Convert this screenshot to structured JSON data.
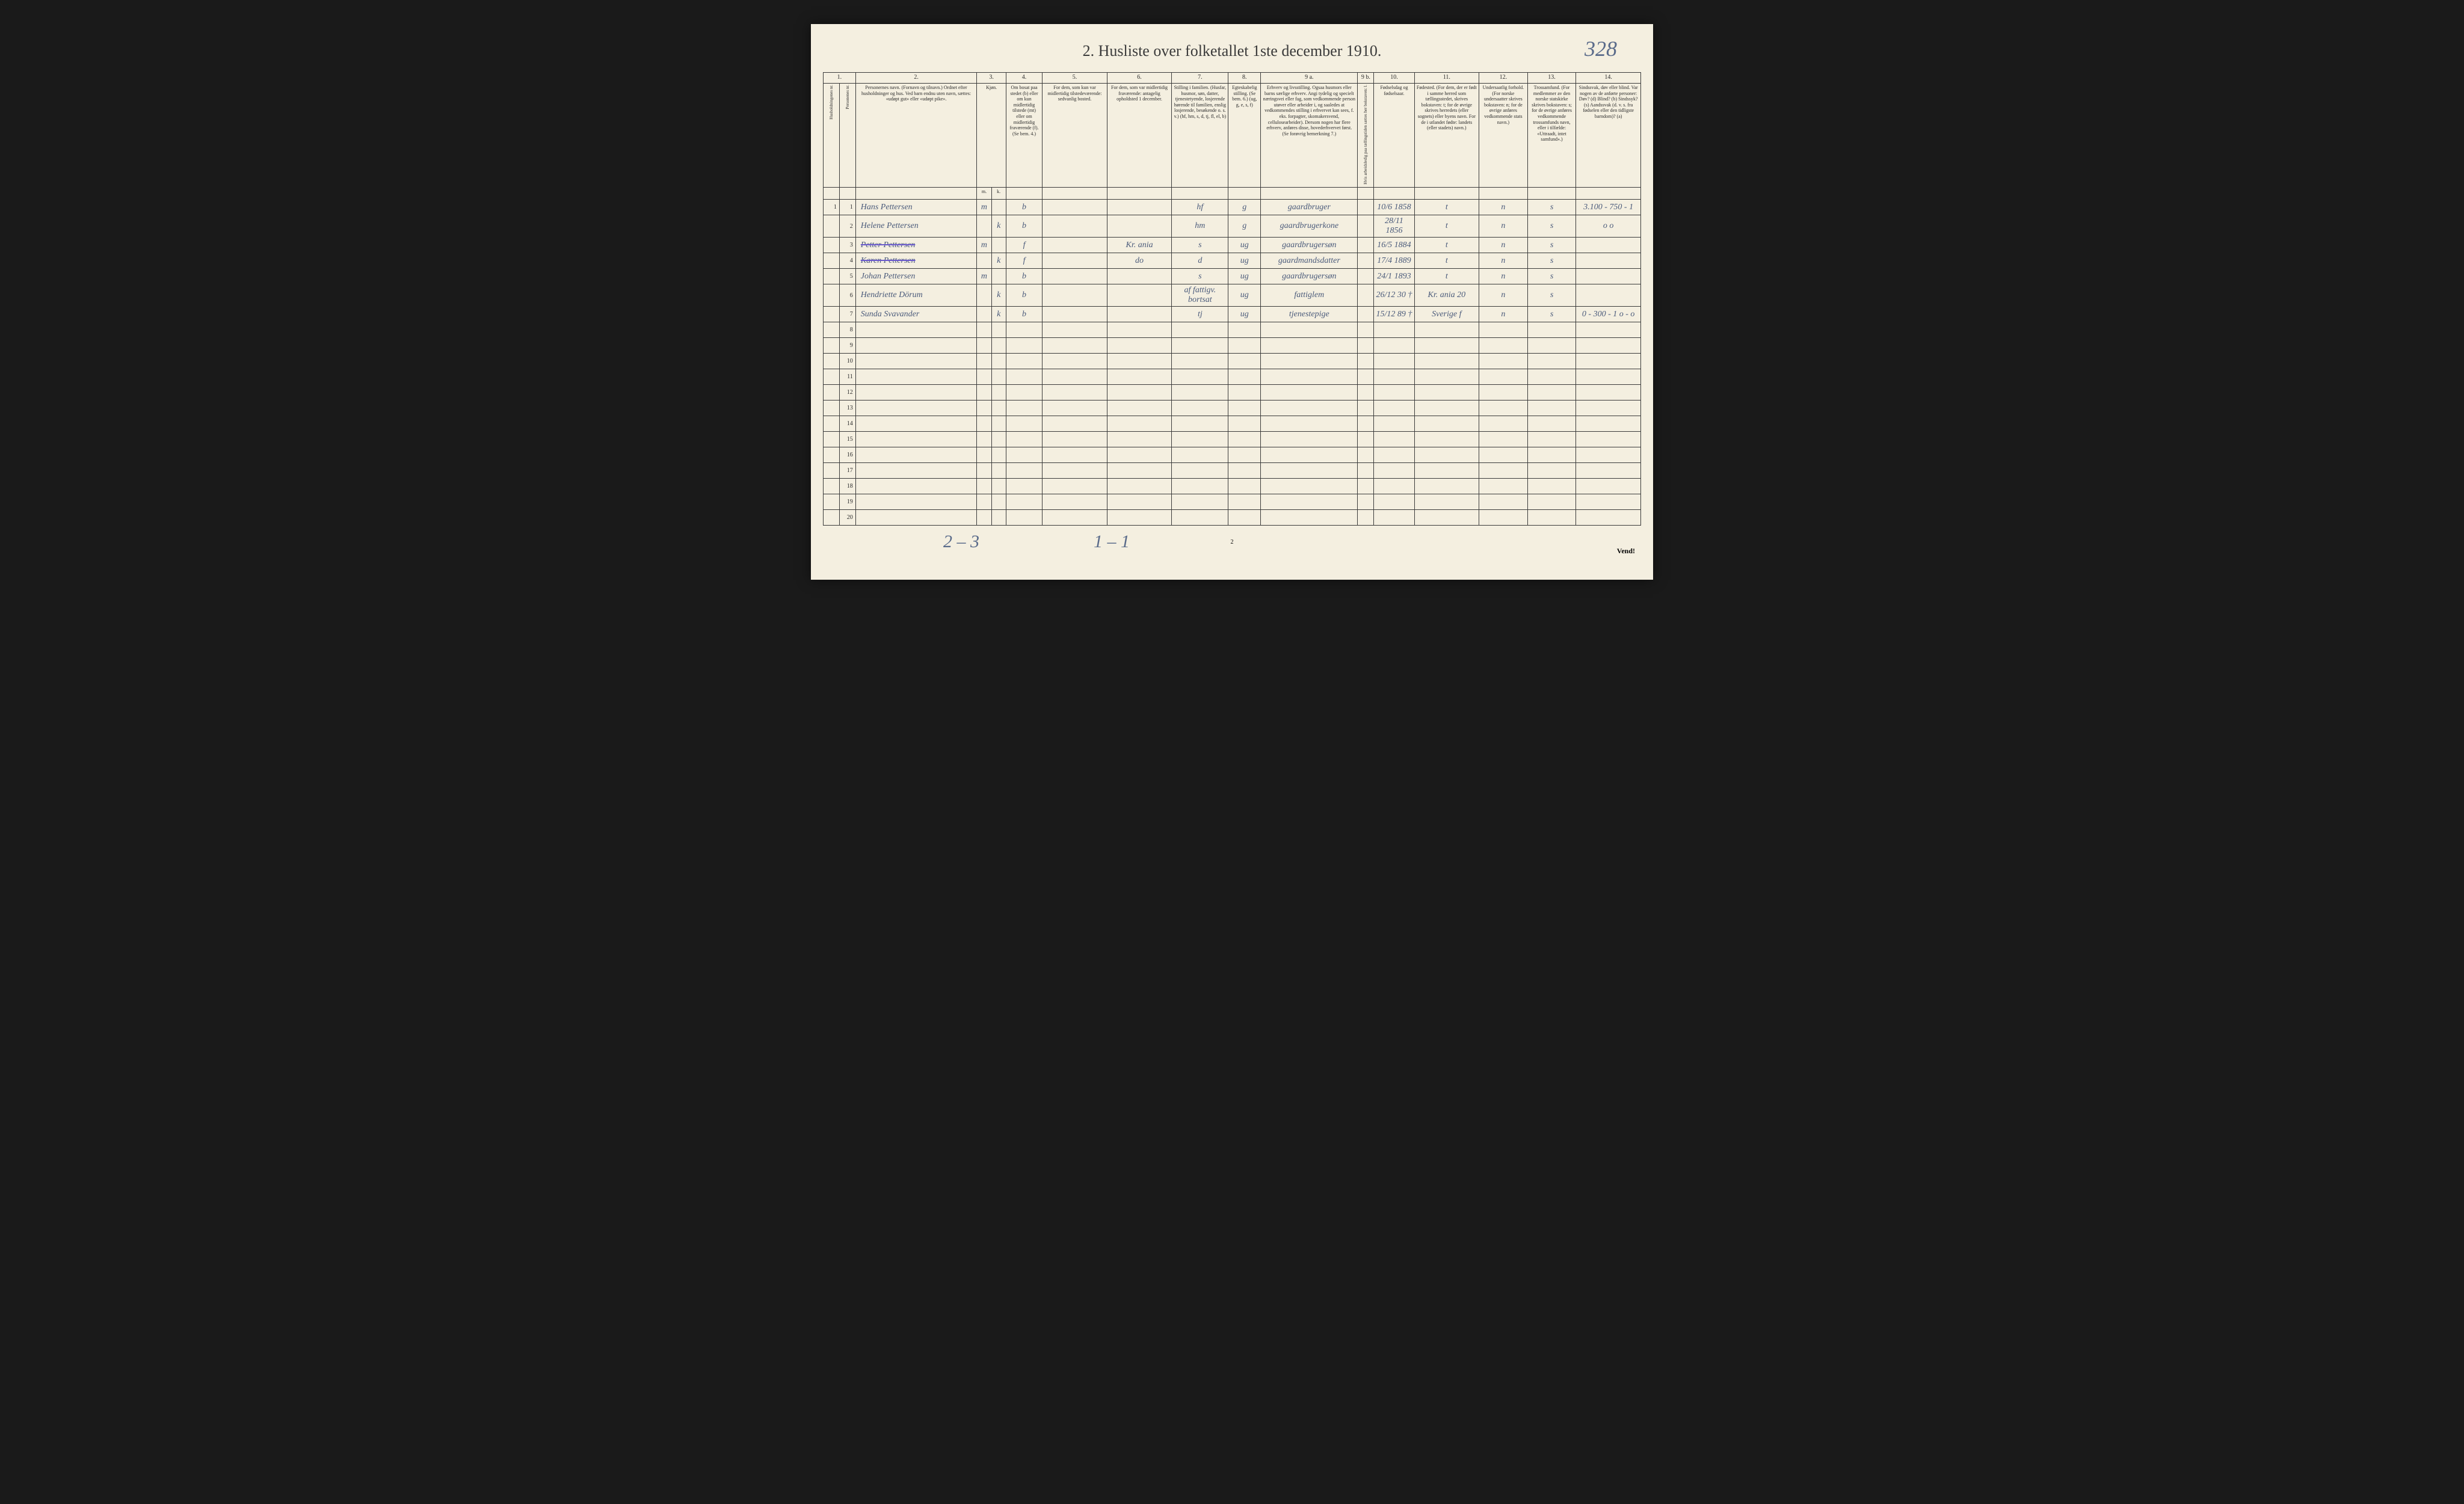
{
  "page_number_handwritten": "328",
  "title": "2.  Husliste over folketallet 1ste december 1910.",
  "column_numbers": [
    "1.",
    "",
    "2.",
    "3.",
    "4.",
    "5.",
    "6.",
    "7.",
    "8.",
    "9 a.",
    "9 b.",
    "10.",
    "11.",
    "12.",
    "13.",
    "14."
  ],
  "headers": {
    "col1a": "Husholdningenes nr.",
    "col1b": "Personenes nr.",
    "col2": "Personernes navn.\n(Fornavn og tilnavn.)\nOrdnet efter husholdninger og hus.\nVed barn endnu uten navn, sættes: «udøpt gut» eller «udøpt pike».",
    "col3": "Kjøn.",
    "col3a": "Mænd.",
    "col3b": "Kvinder.",
    "col4": "Om bosat paa stedet (b) eller om kun midlertidig tilstede (mt) eller om midlertidig fraværende (f).\n(Se bem. 4.)",
    "col5": "For dem, som kun var midlertidig tilstedeværende:\nsedvanlig bosted.",
    "col6": "For dem, som var midlertidig fraværende:\nantagelig opholdsted 1 december.",
    "col7": "Stilling i familien.\n(Husfar, husmor, søn, datter, tjenestetyende, losjerende hørende til familien, enslig losjerende, besøkende o. s. v.)\n(hf, hm, s, d, tj, fl, el, b)",
    "col8": "Egteskabelig stilling.\n(Se bem. 6.)\n(ug, g, e, s, f)",
    "col9a": "Erhverv og livsstilling.\nOgsaa husmors eller barns særlige erhverv.\nAngi tydelig og specielt næringsvei eller fag, som vedkommende person utøver eller arbeider i, og saaledes at vedkommendes stilling i erhvervet kan sees, f. eks. forpagter, skomakersvend, cellulosearbeider). Dersom nogen har flere erhverv, anføres disse, hovederhvervet først.\n(Se forøvrig bemerkning 7.)",
    "col9b": "Hvis arbeidsledig paa tællingstiden sættes her bokstaven: l.",
    "col10": "Fødselsdag og fødselsaar.",
    "col11": "Fødested.\n(For dem, der er født i samme herred som tællingsstedet, skrives bokstaven: t; for de øvrige skrives herredets (eller sognets) eller byens navn. For de i utlandet fødte: landets (eller stadets) navn.)",
    "col12": "Undersaatlig forhold.\n(For norske undersaatter skrives bokstaven: n; for de øvrige anføres vedkommende stats navn.)",
    "col13": "Trossamfund.\n(For medlemmer av den norske statskirke skrives bokstaven: s; for de øvrige anføres vedkommende trossamfunds navn, eller i tilfælde: «Uttraadt, intet samfund».)",
    "col14": "Sindssvak, døv eller blind.\nVar nogen av de anførte personer:\nDøv? (d)\nBlind? (b)\nSindssyk? (s)\nAandssvak (d. v. s. fra fødselen eller den tidligste barndom)? (a)"
  },
  "sub_mk": {
    "m": "m.",
    "k": "k."
  },
  "rows": [
    {
      "hh": "1",
      "pn": "1",
      "name": "Hans Pettersen",
      "m": "m",
      "k": "",
      "res": "b",
      "tmp": "",
      "away": "",
      "fam": "hf",
      "mar": "g",
      "occ": "gaardbruger",
      "wl": "",
      "birth": "10/6 1858",
      "bplace": "t",
      "nat": "n",
      "rel": "s",
      "dis": "3.100 - 750 - 1",
      "struck": false
    },
    {
      "hh": "",
      "pn": "2",
      "name": "Helene Pettersen",
      "m": "",
      "k": "k",
      "res": "b",
      "tmp": "",
      "away": "",
      "fam": "hm",
      "mar": "g",
      "occ": "gaardbrugerkone",
      "wl": "",
      "birth": "28/11 1856",
      "bplace": "t",
      "nat": "n",
      "rel": "s",
      "dis": "o        o",
      "struck": false
    },
    {
      "hh": "",
      "pn": "3",
      "name": "Petter Pettersen",
      "m": "m",
      "k": "",
      "res": "f",
      "tmp": "",
      "away": "Kr. ania",
      "fam": "s",
      "mar": "ug",
      "occ": "gaardbrugersøn",
      "wl": "",
      "birth": "16/5 1884",
      "bplace": "t",
      "nat": "n",
      "rel": "s",
      "dis": "",
      "struck": true
    },
    {
      "hh": "",
      "pn": "4",
      "name": "Karen Pettersen",
      "m": "",
      "k": "k",
      "res": "f",
      "tmp": "",
      "away": "do",
      "fam": "d",
      "mar": "ug",
      "occ": "gaardmandsdatter",
      "wl": "",
      "birth": "17/4 1889",
      "bplace": "t",
      "nat": "n",
      "rel": "s",
      "dis": "",
      "struck": true
    },
    {
      "hh": "",
      "pn": "5",
      "name": "Johan Pettersen",
      "m": "m",
      "k": "",
      "res": "b",
      "tmp": "",
      "away": "",
      "fam": "s",
      "mar": "ug",
      "occ": "gaardbrugersøn",
      "wl": "",
      "birth": "24/1 1893",
      "bplace": "t",
      "nat": "n",
      "rel": "s",
      "dis": "",
      "struck": false
    },
    {
      "hh": "",
      "pn": "6",
      "name": "Hendriette Dörum",
      "m": "",
      "k": "k",
      "res": "b",
      "tmp": "",
      "away": "",
      "fam": "af fattigv. bortsat",
      "mar": "ug",
      "occ": "fattiglem",
      "wl": "",
      "birth": "26/12 30 †",
      "bplace": "Kr. ania 20",
      "nat": "n",
      "rel": "s",
      "dis": "",
      "struck": false
    },
    {
      "hh": "",
      "pn": "7",
      "name": "Sunda Svavander",
      "m": "",
      "k": "k",
      "res": "b",
      "tmp": "",
      "away": "",
      "fam": "tj",
      "mar": "ug",
      "occ": "tjenestepige",
      "wl": "",
      "birth": "15/12 89 †",
      "bplace": "Sverige f",
      "nat": "n",
      "rel": "s",
      "dis": "0 - 300 - 1\no - o",
      "struck": false
    }
  ],
  "empty_rows": [
    8,
    9,
    10,
    11,
    12,
    13,
    14,
    15,
    16,
    17,
    18,
    19,
    20
  ],
  "bottom": {
    "note_left": "2 – 3",
    "note_mid": "1 – 1",
    "page_foot": "2",
    "vend": "Vend!"
  },
  "colors": {
    "paper": "#f4efe0",
    "ink": "#3a3a3a",
    "handwriting": "#4a5a7a",
    "pencil_blue": "#5a6b8a",
    "border": "#3a3a3a"
  },
  "layout": {
    "col_widths_pct": [
      2,
      2,
      15,
      1.8,
      1.8,
      4.5,
      8,
      8,
      7,
      4,
      12,
      2,
      5,
      8,
      6,
      6,
      8
    ]
  }
}
